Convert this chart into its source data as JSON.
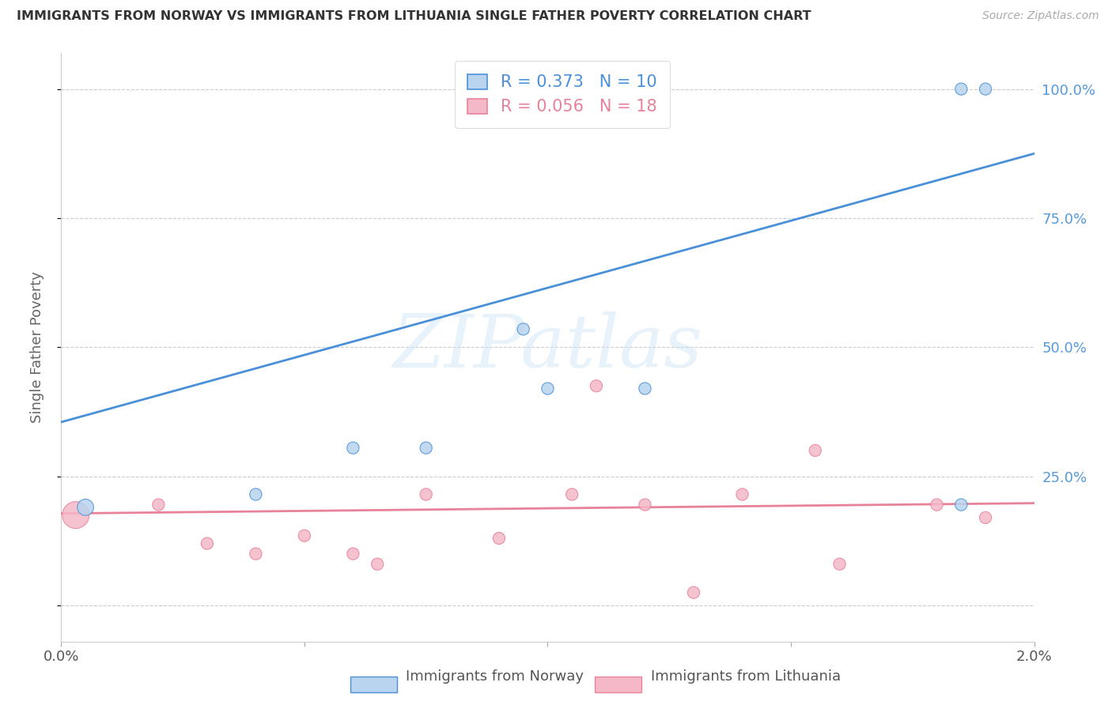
{
  "title": "IMMIGRANTS FROM NORWAY VS IMMIGRANTS FROM LITHUANIA SINGLE FATHER POVERTY CORRELATION CHART",
  "source": "Source: ZipAtlas.com",
  "ylabel": "Single Father Poverty",
  "xlim": [
    0.0,
    0.02
  ],
  "ylim": [
    -0.07,
    1.07
  ],
  "norway_R": 0.373,
  "norway_N": 10,
  "lithuania_R": 0.056,
  "lithuania_N": 18,
  "norway_dot_color": "#b8d4ee",
  "norway_line_color": "#4a90d9",
  "lithuania_dot_color": "#f4b8c8",
  "lithuania_line_color": "#e8829a",
  "norway_x": [
    0.0005,
    0.004,
    0.006,
    0.0075,
    0.0095,
    0.01,
    0.012,
    0.0185,
    0.0185,
    0.019
  ],
  "norway_y": [
    0.19,
    0.215,
    0.305,
    0.305,
    0.535,
    0.42,
    0.42,
    0.195,
    1.0,
    1.0
  ],
  "norway_sizes": [
    220,
    120,
    120,
    120,
    120,
    120,
    120,
    120,
    120,
    120
  ],
  "lithuania_x": [
    0.0003,
    0.002,
    0.003,
    0.004,
    0.005,
    0.006,
    0.0065,
    0.0075,
    0.009,
    0.0105,
    0.011,
    0.012,
    0.013,
    0.014,
    0.0155,
    0.016,
    0.018,
    0.019
  ],
  "lithuania_y": [
    0.175,
    0.195,
    0.12,
    0.1,
    0.135,
    0.1,
    0.08,
    0.215,
    0.13,
    0.215,
    0.425,
    0.195,
    0.025,
    0.215,
    0.3,
    0.08,
    0.195,
    0.17
  ],
  "lithuania_sizes": [
    600,
    120,
    120,
    120,
    120,
    120,
    120,
    120,
    120,
    120,
    120,
    120,
    120,
    120,
    120,
    120,
    120,
    120
  ],
  "norway_trendline_x": [
    0.0,
    0.02
  ],
  "norway_trendline_y": [
    0.355,
    0.875
  ],
  "lithuania_trendline_x": [
    0.0,
    0.02
  ],
  "lithuania_trendline_y": [
    0.178,
    0.198
  ],
  "yticks": [
    0.0,
    0.25,
    0.5,
    0.75,
    1.0
  ],
  "ytick_labels_right": [
    "",
    "25.0%",
    "50.0%",
    "75.0%",
    "100.0%"
  ],
  "xtick_positions": [
    0.0,
    0.005,
    0.01,
    0.015,
    0.02
  ],
  "xtick_labels": [
    "0.0%",
    "",
    "",
    "",
    "2.0%"
  ],
  "watermark": "ZIPatlas",
  "background_color": "#ffffff",
  "grid_color": "#cccccc",
  "right_tick_color": "#5599dd",
  "legend_label_norway": "Immigrants from Norway",
  "legend_label_lithuania": "Immigrants from Lithuania"
}
